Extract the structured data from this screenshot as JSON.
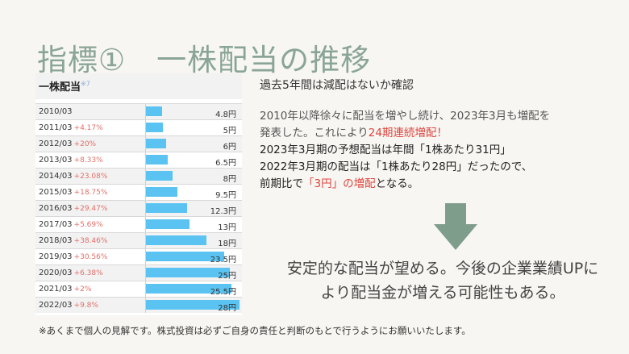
{
  "title": "指標①　一株配当の推移",
  "table": {
    "heading": "一株配当",
    "heading_note": "※7",
    "bar_color": "#5bc3f1",
    "max_value": 28,
    "rows": [
      {
        "year": "2010/03",
        "change": "",
        "value": 4.8,
        "label": "4.8円"
      },
      {
        "year": "2011/03",
        "change": "+4.17%",
        "value": 5,
        "label": "5円"
      },
      {
        "year": "2012/03",
        "change": "+20%",
        "value": 6,
        "label": "6円"
      },
      {
        "year": "2013/03",
        "change": "+8.33%",
        "value": 6.5,
        "label": "6.5円"
      },
      {
        "year": "2014/03",
        "change": "+23.08%",
        "value": 8,
        "label": "8円"
      },
      {
        "year": "2015/03",
        "change": "+18.75%",
        "value": 9.5,
        "label": "9.5円"
      },
      {
        "year": "2016/03",
        "change": "+29.47%",
        "value": 12.3,
        "label": "12.3円"
      },
      {
        "year": "2017/03",
        "change": "+5.69%",
        "value": 13,
        "label": "13円"
      },
      {
        "year": "2018/03",
        "change": "+38.46%",
        "value": 18,
        "label": "18円"
      },
      {
        "year": "2019/03",
        "change": "+30.56%",
        "value": 23.5,
        "label": "23.5円"
      },
      {
        "year": "2020/03",
        "change": "+6.38%",
        "value": 25,
        "label": "25円"
      },
      {
        "year": "2021/03",
        "change": "+2%",
        "value": 25.5,
        "label": "25.5円"
      },
      {
        "year": "2022/03",
        "change": "+9.8%",
        "value": 28,
        "label": "28円"
      }
    ]
  },
  "subtitle": "過去5年間は減配はないか確認",
  "description": {
    "line1": "2010年以降徐々に配当を増やし続け、2023年3月も増配を",
    "line2_a": "発表した。これにより",
    "line2_b": "24期連続増配！",
    "line3": "2023年3月期の予想配当は年間「1株あたり31円」",
    "line4": "2022年3月期の配当は「1株あたり28円」だったので、",
    "line5_a": "前期比で",
    "line5_b": "「3円」の増配",
    "line5_c": "となる。"
  },
  "arrow_color": "#7f9d8b",
  "conclusion": {
    "line1": "安定的な配当が望める。今後の企業業績UPに",
    "line2": "より配当金が増える可能性もある。"
  },
  "footnote": "※あくまで個人の見解です。株式投資は必ずご自身の責任と判断のもとで行うようにお願いいたします。"
}
